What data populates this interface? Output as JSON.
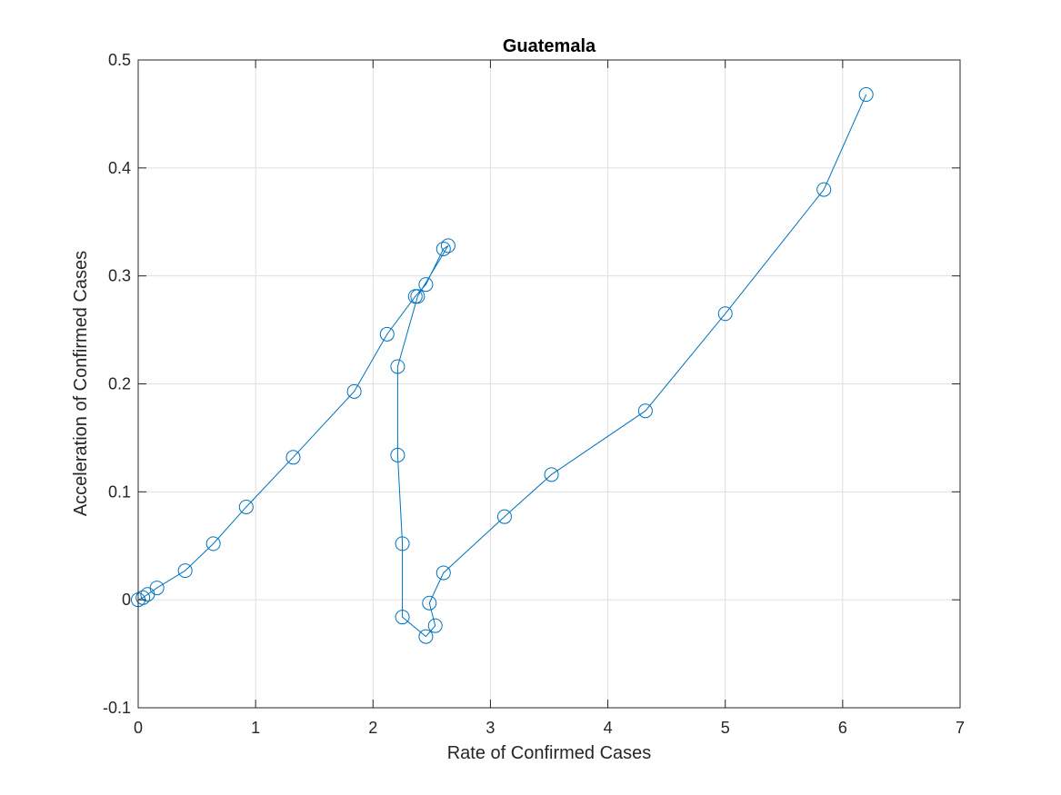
{
  "chart_data": {
    "type": "line",
    "title": "Guatemala",
    "xlabel": "Rate of Confirmed Cases",
    "ylabel": "Acceleration of Confirmed Cases",
    "xlim": [
      0,
      7
    ],
    "ylim": [
      -0.1,
      0.5
    ],
    "xticks": [
      0,
      1,
      2,
      3,
      4,
      5,
      6,
      7
    ],
    "yticks": [
      -0.1,
      0,
      0.1,
      0.2,
      0.3,
      0.4,
      0.5
    ],
    "xtick_labels": [
      "0",
      "1",
      "2",
      "3",
      "4",
      "5",
      "6",
      "7"
    ],
    "ytick_labels": [
      "-0.1",
      "0",
      "0.1",
      "0.2",
      "0.3",
      "0.4",
      "0.5"
    ],
    "grid": true,
    "marker": "circle",
    "line_color": "#0072bd",
    "series": [
      {
        "points": [
          [
            0,
            0
          ],
          [
            0.04,
            0.002
          ],
          [
            0.08,
            0.005
          ],
          [
            0.16,
            0.011
          ],
          [
            0.4,
            0.027
          ],
          [
            0.64,
            0.052
          ],
          [
            0.92,
            0.086
          ],
          [
            1.32,
            0.132
          ],
          [
            1.84,
            0.193
          ],
          [
            2.12,
            0.246
          ],
          [
            2.36,
            0.281
          ],
          [
            2.45,
            0.292
          ],
          [
            2.6,
            0.325
          ],
          [
            2.64,
            0.328
          ],
          [
            2.38,
            0.281
          ],
          [
            2.21,
            0.216
          ],
          [
            2.21,
            0.134
          ],
          [
            2.25,
            0.052
          ],
          [
            2.25,
            -0.016
          ],
          [
            2.45,
            -0.034
          ],
          [
            2.53,
            -0.024
          ],
          [
            2.48,
            -0.003
          ],
          [
            2.6,
            0.025
          ],
          [
            3.12,
            0.077
          ],
          [
            3.52,
            0.116
          ],
          [
            4.32,
            0.175
          ],
          [
            5.0,
            0.265
          ],
          [
            5.84,
            0.38
          ],
          [
            6.2,
            0.468
          ]
        ]
      }
    ]
  }
}
